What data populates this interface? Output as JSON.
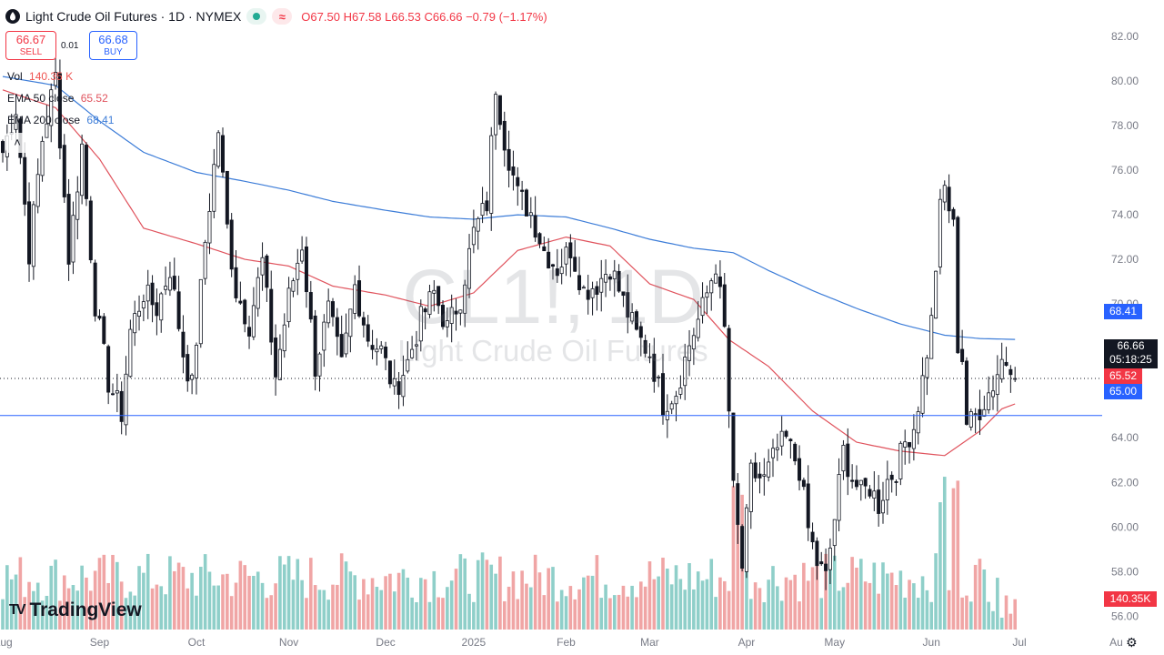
{
  "header": {
    "title": "Light Crude Oil Futures · 1D · NYMEX",
    "open": "O67.50",
    "high": "H67.58",
    "low": "L66.53",
    "close": "C66.66",
    "change": "−0.79 (−1.17%)",
    "wave_icon": "≈"
  },
  "trade": {
    "sell_price": "66.67",
    "sell_label": "SELL",
    "spread": "0.01",
    "buy_price": "66.68",
    "buy_label": "BUY"
  },
  "legend": {
    "vol_label": "Vol",
    "vol_value": "140.35 K",
    "ema50_label": "EMA 50 close",
    "ema50_value": "65.52",
    "ema200_label": "EMA 200 close",
    "ema200_value": "68.41",
    "collapse_icon": "˄"
  },
  "watermark": {
    "symbol": "CL1!, 1D",
    "name": "Light Crude Oil Futures"
  },
  "price_tags": {
    "ema200": "68.41",
    "last": "66.66",
    "countdown": "05:18:25",
    "ema50": "65.52",
    "hline": "65.00",
    "volume": "140.35K"
  },
  "branding": {
    "logo_mark": "TV",
    "logo_text": "TradingView"
  },
  "settings_icon": "⚙",
  "colors": {
    "up": "#26a69a",
    "down": "#ef5350",
    "candle": "#131722",
    "ema50": "#e0535d",
    "ema200": "#3d7dd8",
    "hline": "#2962ff",
    "vol_up": "#8fcfc9",
    "vol_down": "#f0a5a5",
    "tag_red": "#f23645",
    "tag_blue": "#2962ff",
    "tag_dark": "#131722"
  },
  "chart_data": {
    "type": "candlestick",
    "title": "Light Crude Oil Futures",
    "y_ticks": [
      "82.00",
      "80.00",
      "78.00",
      "76.00",
      "74.00",
      "72.00",
      "70.00",
      "68.00",
      "66.00",
      "64.00",
      "62.00",
      "60.00",
      "58.00",
      "56.00"
    ],
    "y_tick_values": [
      82,
      80,
      78,
      76,
      74,
      72,
      70,
      68,
      66,
      64,
      62,
      60,
      58,
      56
    ],
    "y_range": [
      54.26,
      83.63
    ],
    "x_labels": [
      "Aug",
      "Sep",
      "Oct",
      "Nov",
      "Dec",
      "2025",
      "Feb",
      "Mar",
      "Apr",
      "May",
      "Jun",
      "Jul",
      "Au"
    ],
    "x_label_index": [
      0,
      22,
      44,
      65,
      87,
      107,
      128,
      147,
      169,
      189,
      211,
      231,
      253
    ],
    "bar_count": 260,
    "last_close": 66.66,
    "horizontal_line": 65.0,
    "ema50_anchors": [
      [
        0,
        79.6
      ],
      [
        12,
        78.8
      ],
      [
        22,
        76.5
      ],
      [
        32,
        73.4
      ],
      [
        44,
        72.7
      ],
      [
        55,
        72.0
      ],
      [
        65,
        71.7
      ],
      [
        75,
        70.8
      ],
      [
        87,
        70.4
      ],
      [
        97,
        69.9
      ],
      [
        107,
        70.5
      ],
      [
        117,
        72.4
      ],
      [
        128,
        73.0
      ],
      [
        138,
        72.6
      ],
      [
        147,
        70.9
      ],
      [
        157,
        70.2
      ],
      [
        165,
        68.4
      ],
      [
        174,
        67.2
      ],
      [
        184,
        65.2
      ],
      [
        194,
        63.8
      ],
      [
        204,
        63.4
      ],
      [
        214,
        63.2
      ],
      [
        222,
        64.3
      ],
      [
        227,
        65.3
      ],
      [
        230,
        65.52
      ]
    ],
    "ema200_anchors": [
      [
        0,
        80.2
      ],
      [
        12,
        79.8
      ],
      [
        22,
        78.2
      ],
      [
        32,
        76.8
      ],
      [
        44,
        75.9
      ],
      [
        55,
        75.5
      ],
      [
        65,
        75.1
      ],
      [
        75,
        74.6
      ],
      [
        87,
        74.2
      ],
      [
        97,
        73.9
      ],
      [
        107,
        73.8
      ],
      [
        117,
        74.0
      ],
      [
        128,
        73.9
      ],
      [
        138,
        73.4
      ],
      [
        147,
        72.9
      ],
      [
        157,
        72.5
      ],
      [
        166,
        72.3
      ],
      [
        174,
        71.5
      ],
      [
        184,
        70.6
      ],
      [
        194,
        69.8
      ],
      [
        204,
        69.1
      ],
      [
        214,
        68.6
      ],
      [
        222,
        68.45
      ],
      [
        230,
        68.41
      ]
    ],
    "anchors": [
      [
        0,
        76.8
      ],
      [
        3,
        78.8
      ],
      [
        6,
        72.3
      ],
      [
        9,
        77.4
      ],
      [
        12,
        80.2
      ],
      [
        15,
        72.1
      ],
      [
        18,
        77.1
      ],
      [
        21,
        70.0
      ],
      [
        24,
        66.5
      ],
      [
        27,
        65.1
      ],
      [
        29,
        68.8
      ],
      [
        32,
        70.5
      ],
      [
        35,
        69.8
      ],
      [
        38,
        71.6
      ],
      [
        41,
        67.8
      ],
      [
        43,
        66.3
      ],
      [
        46,
        72.8
      ],
      [
        49,
        77.8
      ],
      [
        51,
        73.4
      ],
      [
        53,
        70.6
      ],
      [
        56,
        69.1
      ],
      [
        59,
        71.9
      ],
      [
        62,
        66.8
      ],
      [
        65,
        70.3
      ],
      [
        68,
        72.7
      ],
      [
        71,
        67.2
      ],
      [
        74,
        69.7
      ],
      [
        77,
        67.2
      ],
      [
        80,
        70.8
      ],
      [
        83,
        68.5
      ],
      [
        86,
        67.9
      ],
      [
        89,
        66.1
      ],
      [
        92,
        67.4
      ],
      [
        95,
        69.3
      ],
      [
        98,
        70.5
      ],
      [
        101,
        68.9
      ],
      [
        104,
        70.3
      ],
      [
        107,
        73.2
      ],
      [
        110,
        74.5
      ],
      [
        112,
        79.8
      ],
      [
        114,
        77.4
      ],
      [
        117,
        74.9
      ],
      [
        120,
        74.1
      ],
      [
        123,
        72.4
      ],
      [
        126,
        71.6
      ],
      [
        129,
        72.5
      ],
      [
        132,
        70.6
      ],
      [
        135,
        70.9
      ],
      [
        138,
        71.7
      ],
      [
        141,
        70.1
      ],
      [
        144,
        68.6
      ],
      [
        147,
        67.8
      ],
      [
        150,
        65.5
      ],
      [
        153,
        66.1
      ],
      [
        156,
        68.2
      ],
      [
        159,
        69.8
      ],
      [
        162,
        71.8
      ],
      [
        164,
        68.8
      ],
      [
        166,
        61.6
      ],
      [
        168,
        58.2
      ],
      [
        170,
        62.4
      ],
      [
        173,
        62.1
      ],
      [
        176,
        63.5
      ],
      [
        178,
        63.9
      ],
      [
        181,
        62.6
      ],
      [
        183,
        59.9
      ],
      [
        185,
        58.4
      ],
      [
        187,
        57.7
      ],
      [
        189,
        60.4
      ],
      [
        191,
        63.4
      ],
      [
        193,
        62.2
      ],
      [
        195,
        61.5
      ],
      [
        197,
        61.8
      ],
      [
        199,
        61.0
      ],
      [
        201,
        62.1
      ],
      [
        203,
        62.6
      ],
      [
        205,
        63.8
      ],
      [
        207,
        64.5
      ],
      [
        209,
        66.6
      ],
      [
        211,
        69.2
      ],
      [
        213,
        74.2
      ],
      [
        214,
        75.2
      ],
      [
        216,
        73.4
      ],
      [
        217,
        68.2
      ],
      [
        218,
        67.6
      ],
      [
        219,
        64.7
      ],
      [
        220,
        64.7
      ],
      [
        222,
        65.3
      ],
      [
        225,
        66.4
      ],
      [
        227,
        67.5
      ],
      [
        229,
        67.4
      ],
      [
        230,
        66.66
      ]
    ],
    "volume_axis_label": "140.35K",
    "ema50_value": 65.52,
    "ema200_value": 68.41
  }
}
